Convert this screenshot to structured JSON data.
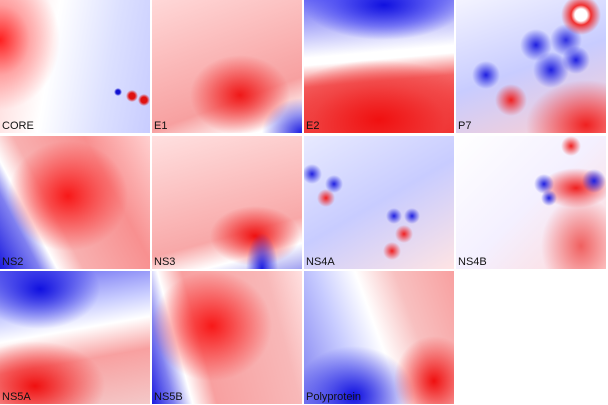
{
  "panels": [
    "CORE",
    "E1",
    "E2",
    "P7",
    "NS2",
    "NS3",
    "NS4A",
    "NS4B",
    "NS5A",
    "NS5B",
    "Polyprotein"
  ]
}
